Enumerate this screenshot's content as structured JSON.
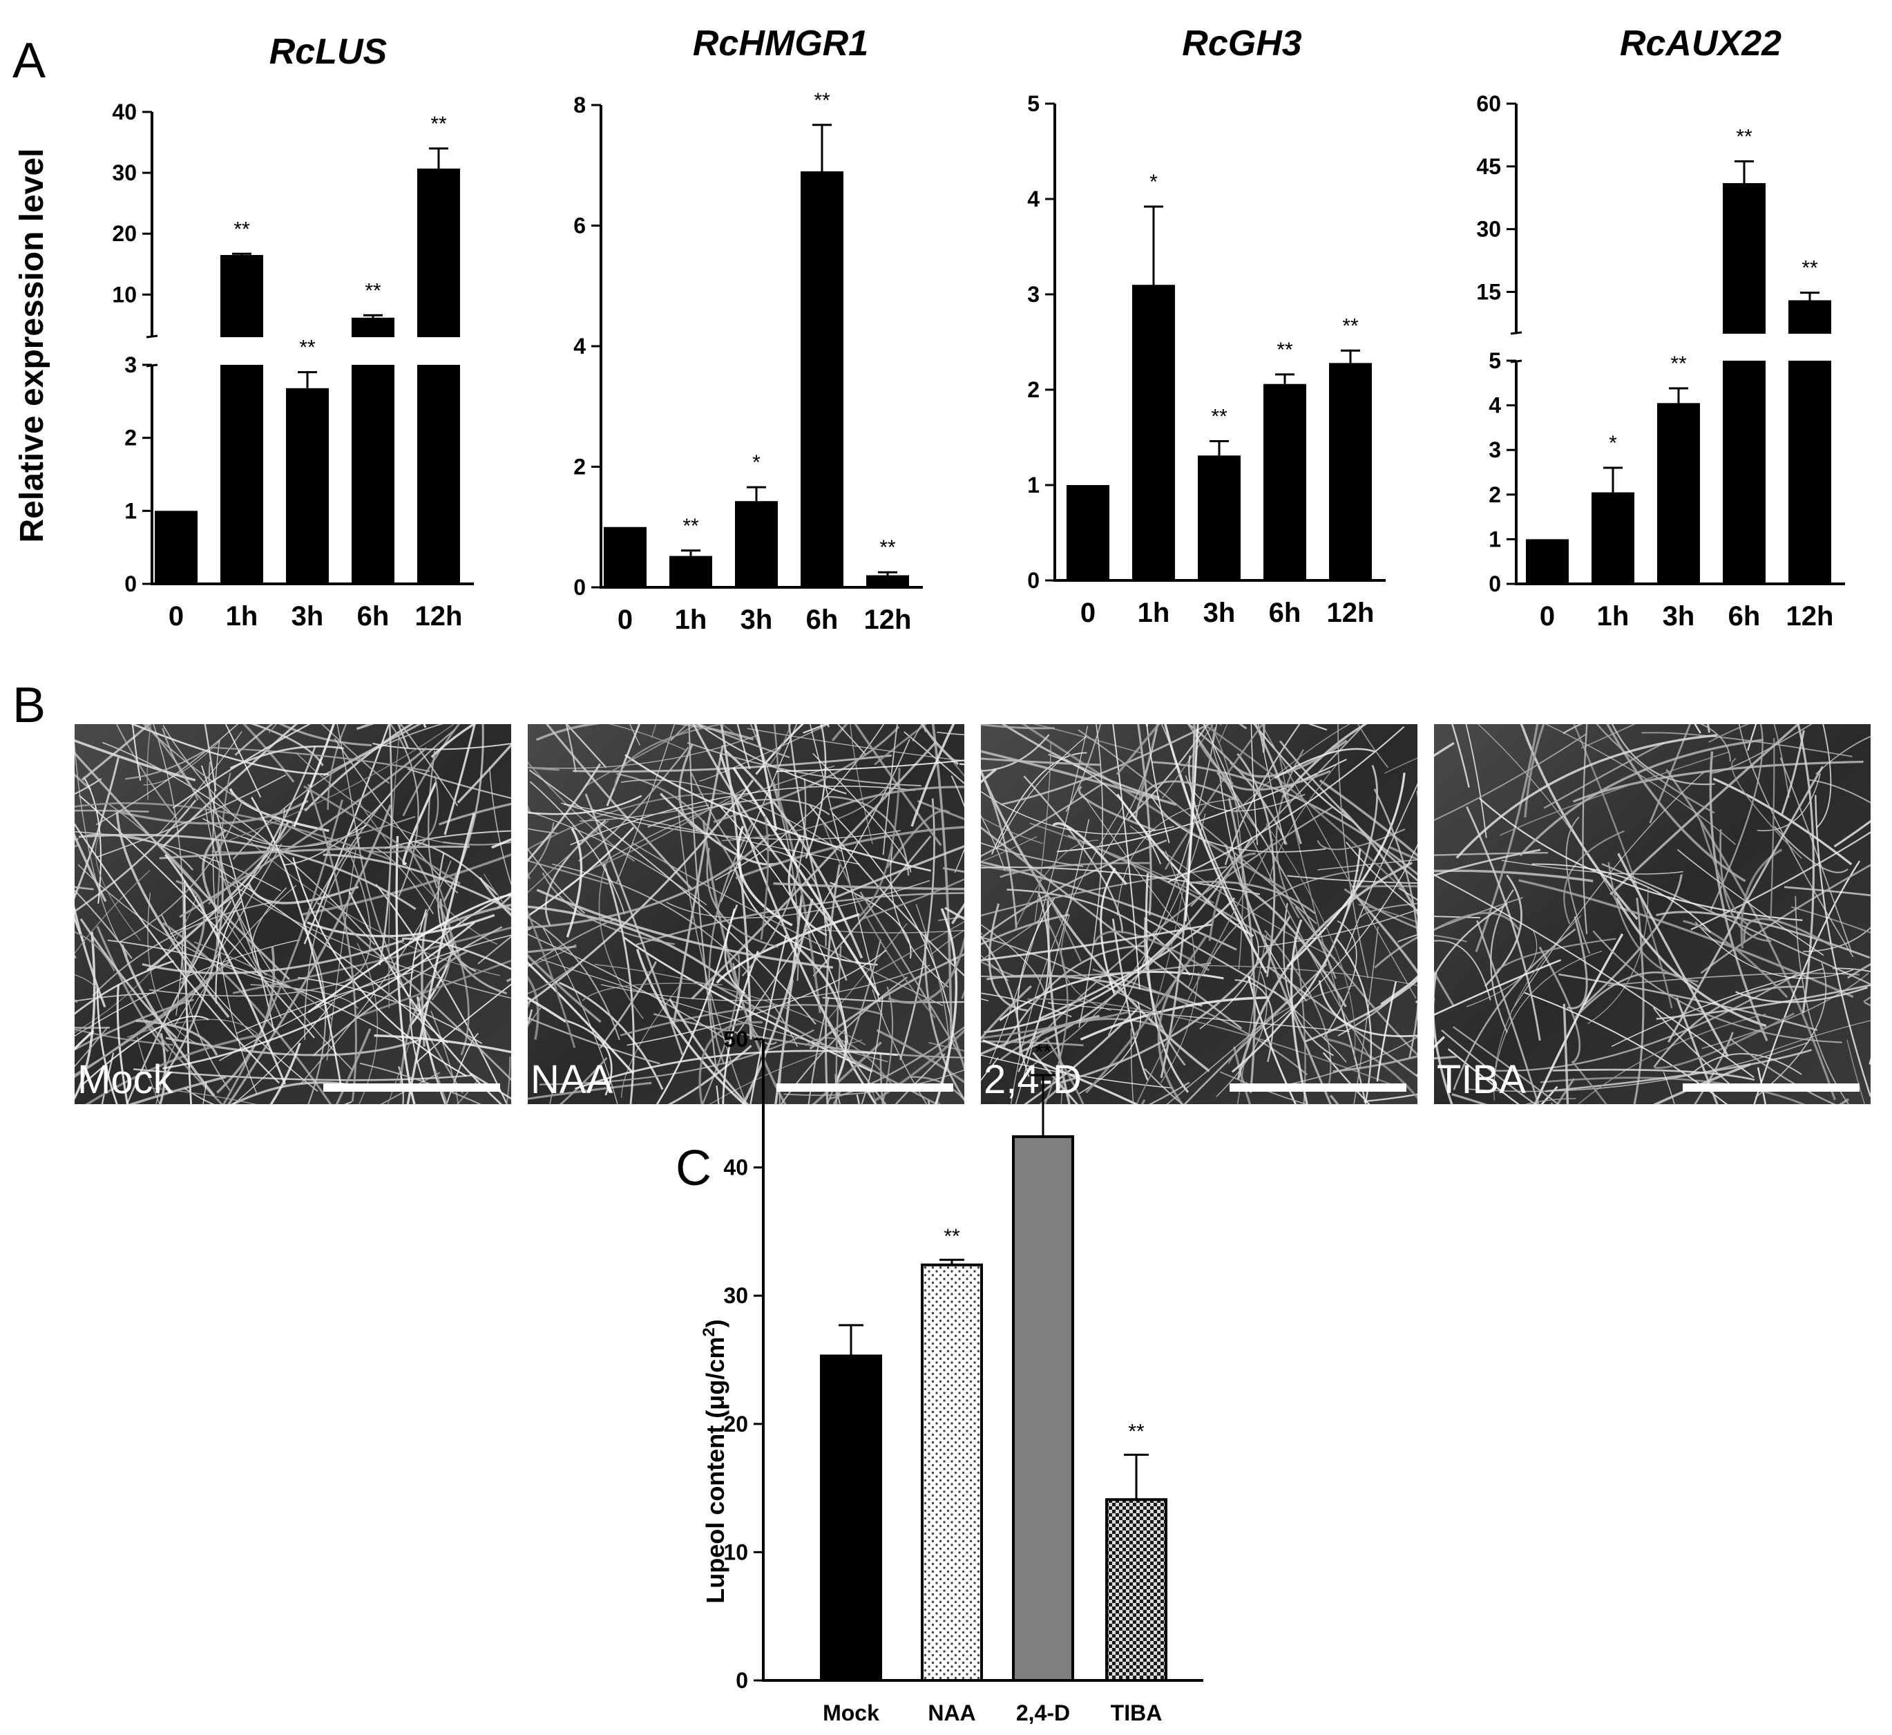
{
  "panels": {
    "a": "A",
    "b": "B",
    "c": "C"
  },
  "panel_a": {
    "y_axis_label": "Relative expression level"
  },
  "chart_data": [
    {
      "type": "bar",
      "title": "RcLUS",
      "categories": [
        "0",
        "1h",
        "3h",
        "6h",
        "12h"
      ],
      "values": [
        1,
        16.5,
        2.68,
        6.2,
        30.7
      ],
      "errors": [
        0,
        0.2,
        0.22,
        0.4,
        3.3
      ],
      "significance": [
        "",
        "**",
        "**",
        "**",
        "**"
      ],
      "ylabel": "Relative expression level",
      "y_axis": "broken",
      "ylim_lower": [
        0,
        3
      ],
      "ylim_upper": [
        3,
        40
      ],
      "yticks_lower": [
        "0",
        "1",
        "2",
        "3"
      ],
      "yticks_upper": [
        "10",
        "20",
        "30",
        "40"
      ],
      "bar_color": "#000000"
    },
    {
      "type": "bar",
      "title": "RcHMGR1",
      "categories": [
        "0",
        "1h",
        "3h",
        "6h",
        "12h"
      ],
      "values": [
        1,
        0.52,
        1.43,
        6.9,
        0.2
      ],
      "errors": [
        0,
        0.09,
        0.23,
        0.77,
        0.05
      ],
      "significance": [
        "",
        "**",
        "*",
        "**",
        "**"
      ],
      "ylim": [
        0,
        8
      ],
      "yticks": [
        "0",
        "2",
        "4",
        "6",
        "8"
      ],
      "bar_color": "#000000"
    },
    {
      "type": "bar",
      "title": "RcGH3",
      "categories": [
        "0",
        "1h",
        "3h",
        "6h",
        "12h"
      ],
      "values": [
        1,
        3.1,
        1.31,
        2.06,
        2.28
      ],
      "errors": [
        0,
        0.82,
        0.15,
        0.1,
        0.13
      ],
      "significance": [
        "",
        "*",
        "**",
        "**",
        "**"
      ],
      "ylim": [
        0,
        5
      ],
      "yticks": [
        "0",
        "1",
        "2",
        "3",
        "4",
        "5"
      ],
      "bar_color": "#000000"
    },
    {
      "type": "bar",
      "title": "RcAUX22",
      "categories": [
        "0",
        "1h",
        "3h",
        "6h",
        "12h"
      ],
      "values": [
        1,
        2.05,
        4.05,
        41,
        13
      ],
      "errors": [
        0,
        0.55,
        0.33,
        5.2,
        1.8
      ],
      "significance": [
        "",
        "*",
        "**",
        "**",
        "**"
      ],
      "y_axis": "broken",
      "ylim_lower": [
        0,
        5
      ],
      "ylim_upper": [
        5,
        60
      ],
      "yticks_lower": [
        "0",
        "1",
        "2",
        "3",
        "4",
        "5"
      ],
      "yticks_upper": [
        "15",
        "30",
        "45",
        "60"
      ],
      "bar_color": "#000000"
    },
    {
      "type": "bar",
      "title": "",
      "categories": [
        "Mock",
        "NAA",
        "2,4-D",
        "TIBA"
      ],
      "values": [
        25.3,
        32.4,
        42.4,
        14.1
      ],
      "errors": [
        2.4,
        0.4,
        4.8,
        3.5
      ],
      "significance": [
        "",
        "**",
        "**",
        "**"
      ],
      "ylabel": "Lupeol content (μg/cm²)",
      "ylim": [
        0,
        50
      ],
      "yticks": [
        "0",
        "10",
        "20",
        "30",
        "40",
        "50"
      ],
      "bar_fills": [
        "black",
        "white-dotted",
        "gray",
        "checkered"
      ],
      "colors": {
        "gray": "#7f7f7f"
      }
    }
  ],
  "panel_b": {
    "images": [
      {
        "label": "Mock"
      },
      {
        "label": "NAA"
      },
      {
        "label": "2,4-D"
      },
      {
        "label": "TIBA"
      }
    ]
  },
  "panel_c": {
    "ylabel_main": "Lupeol content (μg/cm",
    "ylabel_sup": "2",
    "ylabel_end": ")"
  }
}
